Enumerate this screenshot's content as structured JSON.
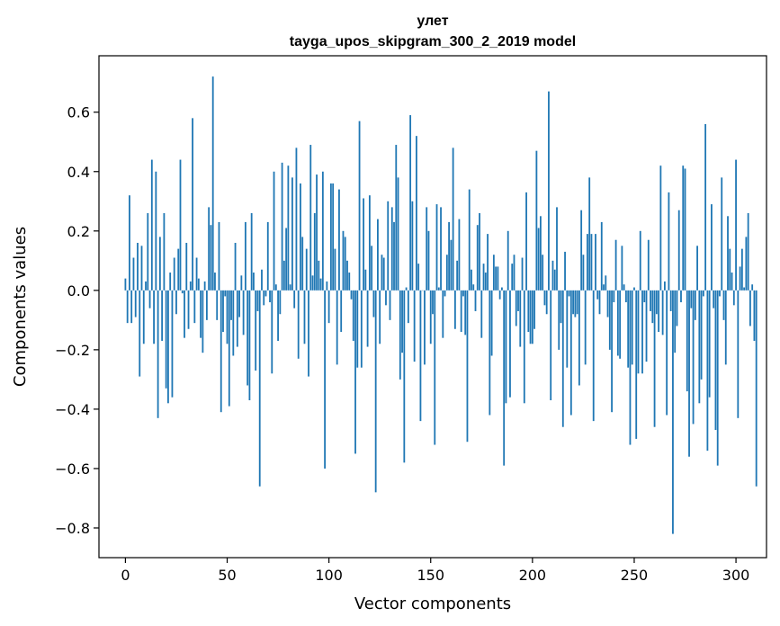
{
  "chart_data": {
    "type": "bar",
    "title": "улет",
    "subtitle": "tayga_upos_skipgram_300_2_2019 model",
    "xlabel": "Vector components",
    "ylabel": "Components values",
    "xlim": [
      -13,
      315
    ],
    "ylim": [
      -0.9,
      0.79
    ],
    "xticks": [
      0,
      50,
      100,
      150,
      200,
      250,
      300
    ],
    "yticks": [
      -0.8,
      -0.6,
      -0.4,
      -0.2,
      0.0,
      0.2,
      0.4,
      0.6
    ],
    "ytick_labels": [
      "−0.8",
      "−0.6",
      "−0.4",
      "−0.2",
      "0.0",
      "0.2",
      "0.4",
      "0.6"
    ],
    "grid": false,
    "bar_color": "#1f77b4",
    "values": [
      0.04,
      -0.11,
      0.32,
      -0.11,
      0.11,
      -0.09,
      0.16,
      -0.29,
      0.15,
      -0.18,
      0.03,
      0.26,
      -0.06,
      0.44,
      -0.18,
      0.4,
      -0.43,
      0.18,
      -0.17,
      0.26,
      -0.33,
      -0.38,
      0.06,
      -0.36,
      0.11,
      -0.08,
      0.14,
      0.44,
      -0.01,
      -0.16,
      0.16,
      -0.13,
      0.03,
      0.58,
      -0.11,
      0.11,
      0.04,
      -0.16,
      -0.21,
      0.03,
      -0.1,
      0.28,
      0.22,
      0.72,
      0.06,
      -0.1,
      0.23,
      -0.41,
      -0.14,
      -0.02,
      -0.18,
      -0.39,
      -0.1,
      -0.22,
      0.16,
      -0.19,
      -0.09,
      0.05,
      -0.15,
      0.23,
      -0.32,
      -0.37,
      0.26,
      0.06,
      -0.27,
      -0.07,
      -0.66,
      0.07,
      -0.05,
      -0.02,
      0.23,
      -0.04,
      -0.28,
      0.4,
      0.02,
      -0.17,
      -0.08,
      0.43,
      0.1,
      0.21,
      0.42,
      0.02,
      0.38,
      -0.06,
      0.48,
      -0.23,
      0.36,
      0.18,
      -0.18,
      0.14,
      -0.29,
      0.49,
      0.05,
      0.26,
      0.39,
      0.1,
      0.04,
      0.4,
      -0.6,
      0.03,
      -0.11,
      0.36,
      0.36,
      0.14,
      -0.25,
      0.34,
      -0.14,
      0.2,
      0.18,
      0.1,
      0.06,
      -0.03,
      -0.17,
      -0.55,
      -0.26,
      0.57,
      -0.26,
      0.31,
      0.07,
      -0.19,
      0.32,
      0.15,
      -0.09,
      -0.68,
      0.24,
      -0.18,
      0.12,
      0.11,
      -0.05,
      0.3,
      -0.1,
      0.28,
      0.23,
      0.49,
      0.38,
      -0.3,
      -0.21,
      -0.58,
      0.01,
      -0.11,
      0.59,
      0.3,
      -0.24,
      0.52,
      0.09,
      -0.44,
      0.0,
      -0.25,
      0.28,
      0.2,
      -0.18,
      -0.08,
      -0.52,
      0.29,
      0.01,
      0.28,
      -0.16,
      -0.02,
      0.12,
      0.23,
      0.17,
      0.48,
      -0.13,
      0.1,
      0.24,
      -0.14,
      -0.02,
      -0.15,
      -0.51,
      0.34,
      0.07,
      0.02,
      -0.07,
      0.22,
      0.26,
      -0.16,
      0.09,
      0.06,
      0.19,
      -0.42,
      -0.22,
      0.12,
      0.08,
      0.08,
      -0.03,
      0.01,
      -0.59,
      -0.38,
      0.2,
      -0.36,
      0.09,
      0.12,
      -0.12,
      -0.07,
      -0.19,
      0.11,
      -0.38,
      0.33,
      -0.14,
      -0.18,
      -0.18,
      -0.13,
      0.47,
      0.21,
      0.25,
      0.12,
      -0.05,
      -0.08,
      0.67,
      -0.37,
      0.1,
      0.07,
      0.28,
      -0.2,
      -0.11,
      -0.46,
      0.13,
      -0.26,
      -0.02,
      -0.42,
      -0.08,
      -0.09,
      -0.08,
      -0.32,
      0.27,
      0.12,
      -0.25,
      0.19,
      0.38,
      0.19,
      -0.44,
      0.19,
      -0.03,
      -0.08,
      0.23,
      0.02,
      0.05,
      -0.09,
      -0.2,
      -0.41,
      -0.04,
      0.17,
      -0.22,
      -0.23,
      0.15,
      0.02,
      -0.04,
      -0.26,
      -0.52,
      -0.25,
      0.01,
      -0.5,
      -0.28,
      0.2,
      -0.28,
      -0.04,
      -0.24,
      0.17,
      -0.07,
      -0.11,
      -0.46,
      -0.08,
      -0.14,
      0.42,
      -0.15,
      0.03,
      -0.42,
      0.33,
      -0.07,
      -0.82,
      -0.21,
      -0.12,
      0.27,
      -0.04,
      0.42,
      0.41,
      -0.34,
      -0.56,
      -0.06,
      -0.45,
      -0.1,
      0.15,
      -0.38,
      -0.3,
      -0.02,
      0.56,
      -0.54,
      -0.36,
      0.29,
      -0.06,
      -0.47,
      -0.59,
      -0.02,
      0.38,
      -0.1,
      -0.25,
      0.25,
      0.14,
      0.06,
      -0.05,
      0.44,
      -0.43,
      0.08,
      0.14,
      0.01,
      0.18,
      0.26,
      -0.12,
      0.02,
      -0.17,
      -0.66
    ]
  }
}
